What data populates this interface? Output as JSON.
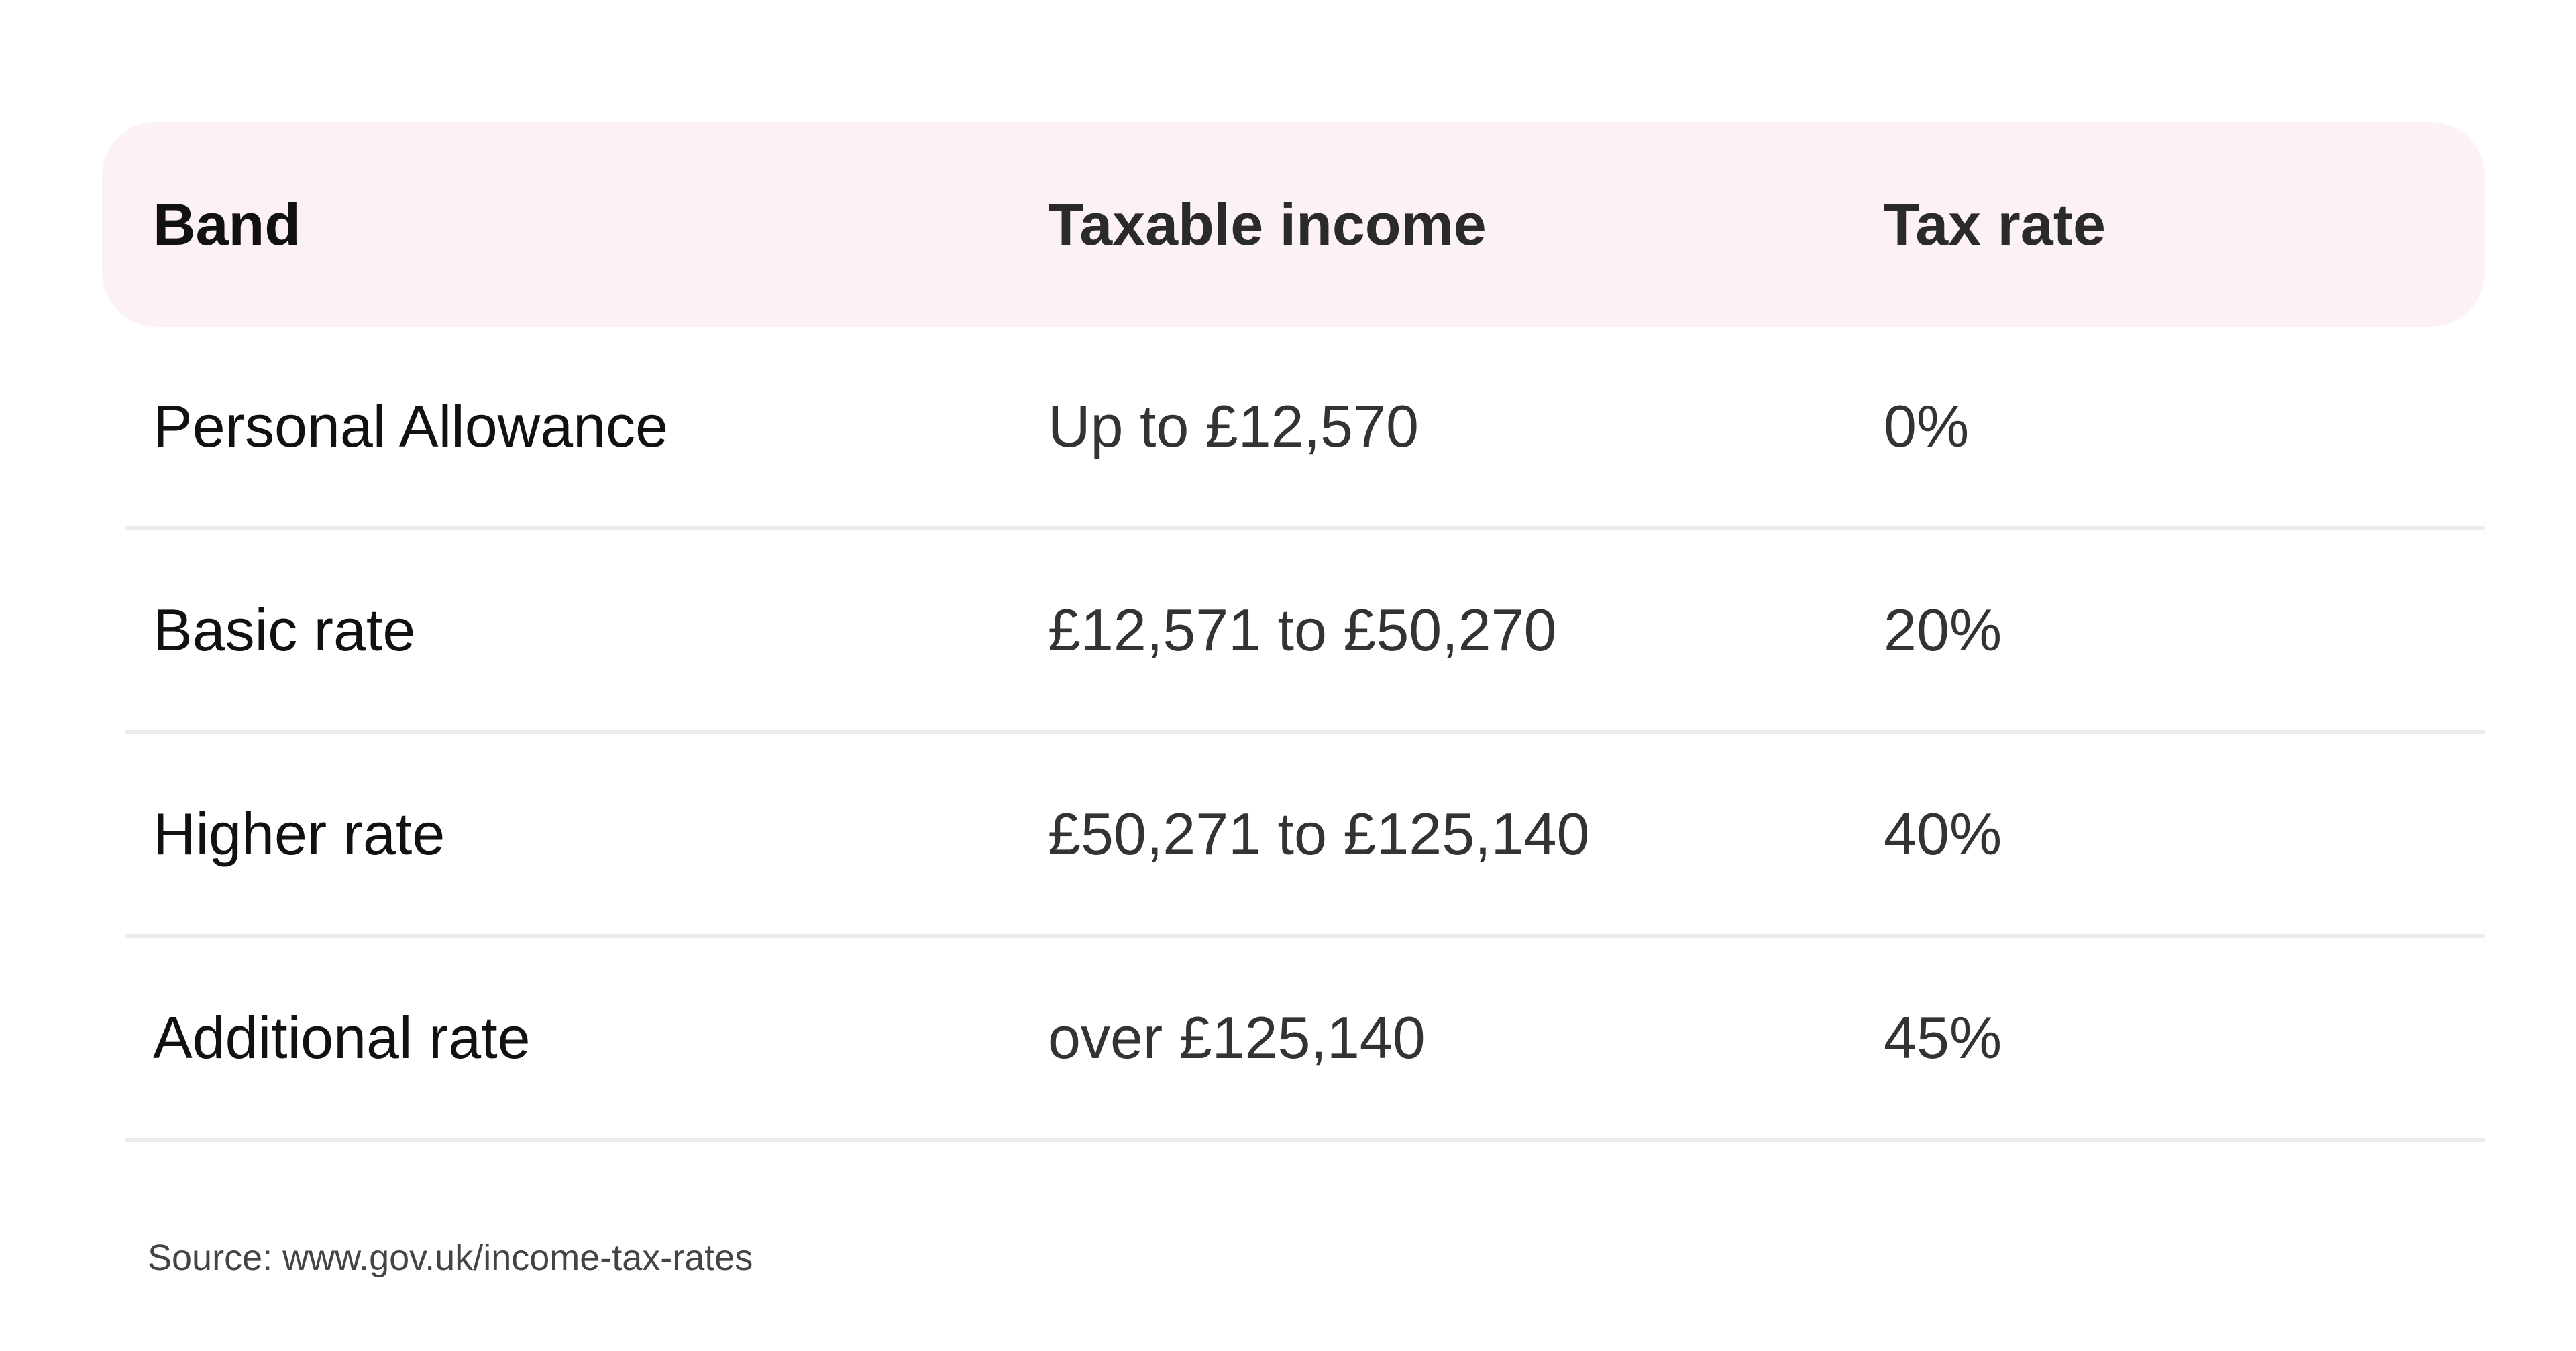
{
  "table": {
    "headers": {
      "band": "Band",
      "taxable_income": "Taxable income",
      "tax_rate": "Tax rate"
    },
    "rows": [
      {
        "band": "Personal Allowance",
        "taxable_income": "Up to £12,570",
        "tax_rate": "0%"
      },
      {
        "band": "Basic rate",
        "taxable_income": "£12,571 to £50,270",
        "tax_rate": "20%"
      },
      {
        "band": "Higher rate",
        "taxable_income": "£50,271 to £125,140",
        "tax_rate": "40%"
      },
      {
        "band": "Additional rate",
        "taxable_income": "over £125,140",
        "tax_rate": "45%"
      }
    ]
  },
  "source": "Source: www.gov.uk/income-tax-rates",
  "colors": {
    "header_background": "#fdf2f3",
    "row_divider": "#ececec"
  }
}
